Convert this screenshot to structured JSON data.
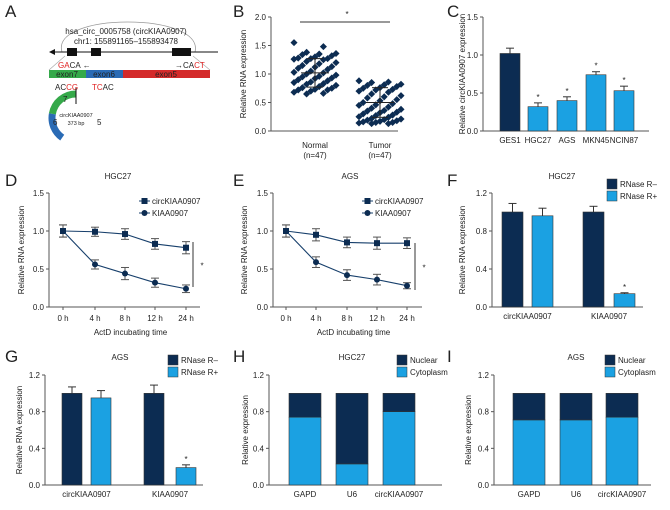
{
  "colors": {
    "dark": "#0c2c52",
    "light": "#1ba1e2",
    "line": "#173f6b",
    "green": "#35a94a",
    "blue": "#2a6bb5",
    "red": "#d42a2a",
    "axis": "#555555",
    "primer_red": "#e02020"
  },
  "diagram": {
    "letter": "A",
    "circ_id": "hsa_circ_0005758 (circKIAA0907)",
    "coords": "chr1: 155891165–155893478",
    "exons": [
      "exon7",
      "exon6",
      "exon5"
    ],
    "primer_left": {
      "red": "GA",
      "black": "CA",
      "arrow": "←"
    },
    "primer_right": {
      "arrow": "→",
      "black": "CA",
      "red": "CT"
    },
    "junction_left": {
      "black": "AC",
      "red": "CG"
    },
    "junction_right": {
      "red": "TC",
      "black": "AC"
    },
    "circle_numbers": [
      "7",
      "6",
      "5"
    ],
    "circle_name": "circKIAA0907",
    "circle_size": "373 bp"
  },
  "significance_marker": "*",
  "chart_data": [
    {
      "panel": "B",
      "type": "scatter",
      "title": "",
      "ylabel": "Relative RNA expression",
      "ylim": [
        0,
        2.0
      ],
      "yticks": [
        "0.0",
        "0.5",
        "1.0",
        "1.5",
        "2.0"
      ],
      "categories": [
        "Normal",
        "Tumor"
      ],
      "category_n": [
        "(n=47)",
        "(n=47)"
      ],
      "series": [
        {
          "name": "Normal",
          "mean": 1.02,
          "sd": 0.25,
          "values": [
            1.55,
            1.48,
            1.38,
            1.36,
            1.35,
            1.34,
            1.32,
            1.3,
            1.28,
            1.27,
            1.27,
            1.26,
            1.25,
            1.22,
            1.2,
            1.18,
            1.15,
            1.13,
            1.12,
            1.1,
            1.08,
            1.05,
            1.03,
            1.02,
            1.0,
            0.98,
            0.96,
            0.95,
            0.93,
            0.92,
            0.9,
            0.88,
            0.86,
            0.85,
            0.83,
            0.82,
            0.8,
            0.78,
            0.76,
            0.75,
            0.73,
            0.72,
            0.72,
            0.7,
            0.68,
            0.66,
            0.65
          ]
        },
        {
          "name": "Tumor",
          "mean": 0.5,
          "sd": 0.26,
          "values": [
            0.88,
            0.86,
            0.85,
            0.82,
            0.81,
            0.8,
            0.78,
            0.76,
            0.75,
            0.73,
            0.72,
            0.7,
            0.68,
            0.65,
            0.62,
            0.6,
            0.58,
            0.55,
            0.53,
            0.5,
            0.48,
            0.46,
            0.45,
            0.42,
            0.4,
            0.38,
            0.36,
            0.35,
            0.33,
            0.32,
            0.3,
            0.28,
            0.27,
            0.25,
            0.24,
            0.22,
            0.21,
            0.2,
            0.19,
            0.18,
            0.17,
            0.16,
            0.15,
            0.15,
            0.14,
            0.13,
            0.13
          ]
        }
      ],
      "significant": true
    },
    {
      "panel": "C",
      "type": "bar",
      "title": "",
      "ylabel": "Relative circKIAA0907 expression",
      "ylim": [
        0,
        1.5
      ],
      "yticks": [
        "0.0",
        "0.5",
        "1.0",
        "1.5"
      ],
      "categories": [
        "GES1",
        "HGC27",
        "AGS",
        "MKN45",
        "NCIN87"
      ],
      "values": [
        1.02,
        0.32,
        0.4,
        0.74,
        0.53
      ],
      "errors": [
        0.07,
        0.05,
        0.05,
        0.04,
        0.06
      ],
      "bar_colors": [
        "#0c2c52",
        "#1ba1e2",
        "#1ba1e2",
        "#1ba1e2",
        "#1ba1e2"
      ],
      "significant": [
        false,
        true,
        true,
        true,
        true
      ]
    },
    {
      "panel": "D",
      "type": "line",
      "title": "HGC27",
      "xlabel": "ActD incubating time",
      "ylabel": "Relative RNA expression",
      "ylim": [
        0,
        1.5
      ],
      "yticks": [
        "0.0",
        "0.5",
        "1.0",
        "1.5"
      ],
      "x": [
        "0 h",
        "4 h",
        "8 h",
        "12 h",
        "24 h"
      ],
      "series": [
        {
          "name": "circKIAA0907",
          "marker": "square",
          "values": [
            1.0,
            0.99,
            0.96,
            0.83,
            0.78
          ],
          "errors": [
            0.08,
            0.06,
            0.07,
            0.07,
            0.08
          ]
        },
        {
          "name": "KIAA0907",
          "marker": "circle",
          "values": [
            1.0,
            0.56,
            0.44,
            0.32,
            0.24
          ],
          "errors": [
            0.08,
            0.06,
            0.08,
            0.06,
            0.05
          ]
        }
      ],
      "legend": "top-right",
      "significant": true
    },
    {
      "panel": "E",
      "type": "line",
      "title": "AGS",
      "xlabel": "ActD incubating time",
      "ylabel": "Relative RNA expression",
      "ylim": [
        0,
        1.5
      ],
      "yticks": [
        "0.0",
        "0.5",
        "1.0",
        "1.5"
      ],
      "x": [
        "0 h",
        "4 h",
        "8 h",
        "12 h",
        "24 h"
      ],
      "series": [
        {
          "name": "circKIAA0907",
          "marker": "square",
          "values": [
            1.0,
            0.95,
            0.85,
            0.84,
            0.84
          ],
          "errors": [
            0.08,
            0.08,
            0.07,
            0.08,
            0.07
          ]
        },
        {
          "name": "KIAA0907",
          "marker": "circle",
          "values": [
            1.0,
            0.59,
            0.42,
            0.36,
            0.28
          ],
          "errors": [
            0.08,
            0.07,
            0.07,
            0.07,
            0.04
          ]
        }
      ],
      "legend": "top-right",
      "significant": true
    },
    {
      "panel": "F",
      "type": "bar",
      "title": "HGC27",
      "ylabel": "Relative RNA expression",
      "ylim": [
        0,
        1.2
      ],
      "yticks": [
        "0.0",
        "0.4",
        "0.8",
        "1.2"
      ],
      "categories": [
        "circKIAA0907",
        "KIAA0907"
      ],
      "series": [
        {
          "name": "RNase R–",
          "color": "#0c2c52",
          "values": [
            1.0,
            1.0
          ],
          "errors": [
            0.09,
            0.06
          ],
          "significant": [
            false,
            false
          ]
        },
        {
          "name": "RNase R+",
          "color": "#1ba1e2",
          "values": [
            0.96,
            0.14
          ],
          "errors": [
            0.08,
            0.01
          ],
          "significant": [
            false,
            true
          ]
        }
      ],
      "legend": "top-right"
    },
    {
      "panel": "G",
      "type": "bar",
      "title": "AGS",
      "ylabel": "Relative RNA expression",
      "ylim": [
        0,
        1.2
      ],
      "yticks": [
        "0.0",
        "0.4",
        "0.8",
        "1.2"
      ],
      "categories": [
        "circKIAA0907",
        "KIAA0907"
      ],
      "series": [
        {
          "name": "RNase R–",
          "color": "#0c2c52",
          "values": [
            1.0,
            1.0
          ],
          "errors": [
            0.07,
            0.09
          ],
          "significant": [
            false,
            false
          ]
        },
        {
          "name": "RNase R+",
          "color": "#1ba1e2",
          "values": [
            0.95,
            0.19
          ],
          "errors": [
            0.08,
            0.03
          ],
          "significant": [
            false,
            true
          ]
        }
      ],
      "legend": "top-right"
    },
    {
      "panel": "H",
      "type": "stacked-bar",
      "title": "HGC27",
      "ylabel": "Relative expression",
      "ylim": [
        0,
        1.2
      ],
      "yticks": [
        "0.0",
        "0.4",
        "0.8",
        "1.2"
      ],
      "categories": [
        "GAPD",
        "U6",
        "circKIAA0907"
      ],
      "series": [
        {
          "name": "Nuclear",
          "color": "#0c2c52",
          "values": [
            0.26,
            0.77,
            0.2
          ]
        },
        {
          "name": "Cytoplasm",
          "color": "#1ba1e2",
          "values": [
            0.74,
            0.23,
            0.8
          ]
        }
      ],
      "legend": "top-right"
    },
    {
      "panel": "I",
      "type": "stacked-bar",
      "title": "AGS",
      "ylabel": "Relative expression",
      "ylim": [
        0,
        1.2
      ],
      "yticks": [
        "0.0",
        "0.4",
        "0.8",
        "1.2"
      ],
      "categories": [
        "GAPD",
        "U6",
        "circKIAA0907"
      ],
      "series": [
        {
          "name": "Nuclear",
          "color": "#0c2c52",
          "values": [
            0.29,
            0.29,
            0.26
          ]
        },
        {
          "name": "Cytoplasm",
          "color": "#1ba1e2",
          "values": [
            0.71,
            0.71,
            0.74
          ]
        }
      ],
      "legend": "top-right"
    }
  ]
}
